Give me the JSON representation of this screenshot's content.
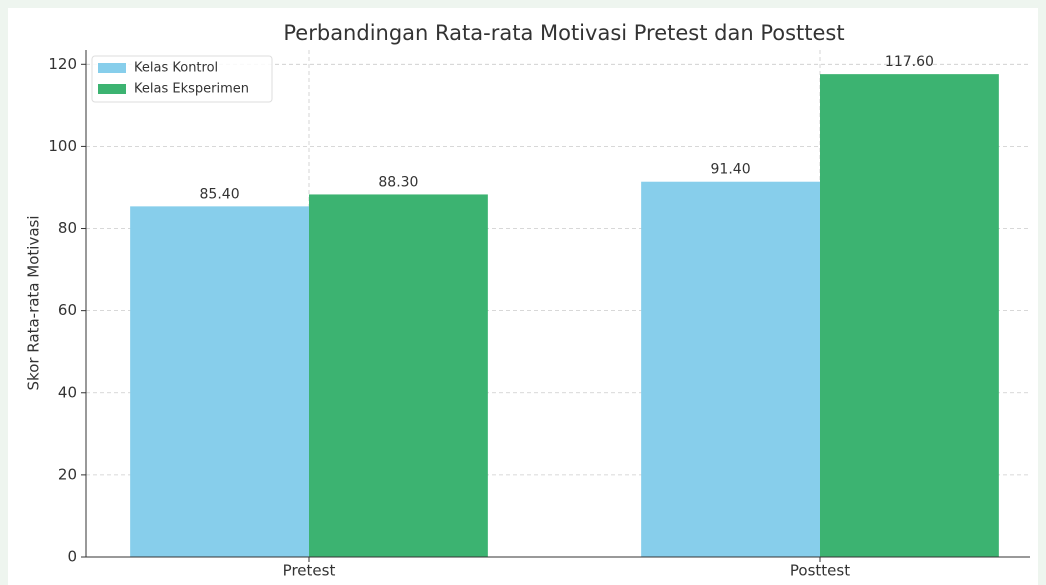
{
  "chart_data": {
    "type": "bar",
    "title": "Perbandingan Rata-rata Motivasi Pretest dan Posttest",
    "ylabel": "Skor Rata-rata Motivasi",
    "categories": [
      "Pretest",
      "Posttest"
    ],
    "series": [
      {
        "name": "Kelas Kontrol",
        "color": "#87ceeb",
        "values": [
          85.4,
          91.4
        ],
        "value_labels": [
          "85.40",
          "91.40"
        ]
      },
      {
        "name": "Kelas Eksperimen",
        "color": "#3cb371",
        "values": [
          88.3,
          117.6
        ],
        "value_labels": [
          "88.30",
          "117.60"
        ]
      }
    ],
    "ylim": [
      0,
      123.48
    ],
    "yticks": [
      0,
      20,
      40,
      60,
      80,
      100,
      120
    ],
    "grid": true,
    "legend": "upper left"
  }
}
